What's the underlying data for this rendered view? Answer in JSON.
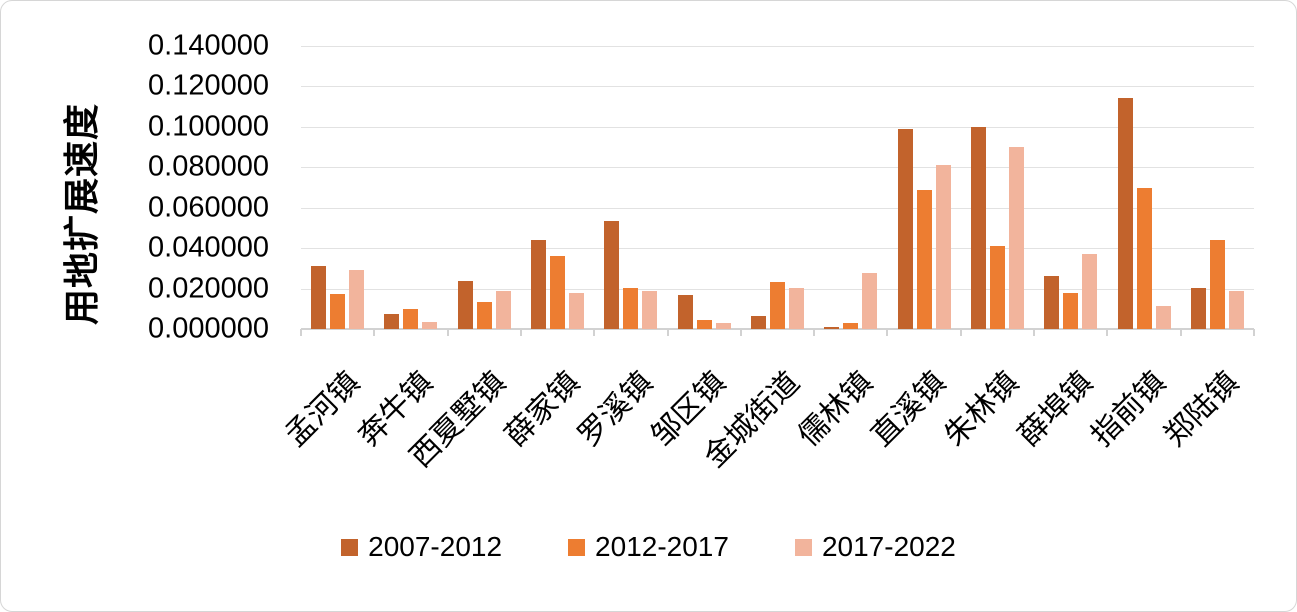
{
  "chart_data": {
    "type": "bar",
    "title": "",
    "xlabel": "",
    "ylabel": "用地扩展速度",
    "ylim": [
      0,
      0.14
    ],
    "ytick_step": 0.02,
    "ytick_decimals": 6,
    "ytick_labels": [
      "0.000000",
      "0.020000",
      "0.040000",
      "0.060000",
      "0.080000",
      "0.100000",
      "0.120000",
      "0.140000"
    ],
    "grid": true,
    "legend_position": "bottom",
    "categories": [
      "孟河镇",
      "奔牛镇",
      "西夏墅镇",
      "薛家镇",
      "罗溪镇",
      "邹区镇",
      "金城街道",
      "儒林镇",
      "直溪镇",
      "朱林镇",
      "薛埠镇",
      "指前镇",
      "郑陆镇"
    ],
    "series": [
      {
        "name": "2007-2012",
        "color": "#C2632C",
        "values": [
          0.031,
          0.0075,
          0.024,
          0.044,
          0.0535,
          0.017,
          0.0065,
          0.001,
          0.099,
          0.1,
          0.026,
          0.1145,
          0.0205
        ]
      },
      {
        "name": "2012-2017",
        "color": "#ED7D31",
        "values": [
          0.0175,
          0.01,
          0.0135,
          0.036,
          0.0203,
          0.0045,
          0.0233,
          0.003,
          0.069,
          0.041,
          0.018,
          0.07,
          0.044
        ]
      },
      {
        "name": "2017-2022",
        "color": "#F2B49C",
        "values": [
          0.029,
          0.0035,
          0.019,
          0.018,
          0.019,
          0.003,
          0.0205,
          0.0277,
          0.081,
          0.09,
          0.037,
          0.0113,
          0.019
        ]
      }
    ],
    "colors": {
      "gridline": "#E2E2E2",
      "axis": "#D2D2D2",
      "text": "#000000",
      "frame_border": "#D6D6D6",
      "background": "#FFFFFF"
    }
  }
}
